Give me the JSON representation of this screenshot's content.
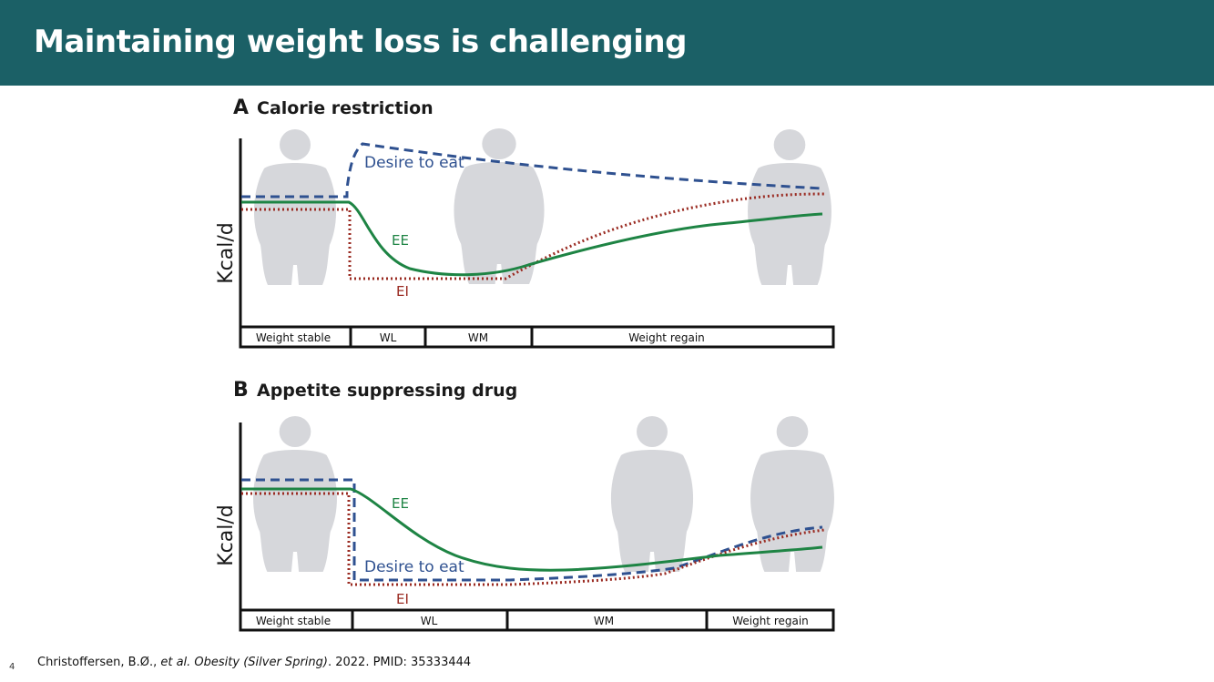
{
  "slide": {
    "title": "Maintaining weight loss is challenging",
    "page_number": "4"
  },
  "panel_a": {
    "letter": "A",
    "title": "Calorie restriction",
    "ylabel": "Kcal/d",
    "label_desire": "Desire to eat",
    "label_ee": "EE",
    "label_ei": "EI",
    "phases": [
      "Weight stable",
      "WL",
      "WM",
      "Weight regain"
    ]
  },
  "panel_b": {
    "letter": "B",
    "title": "Appetite suppressing drug",
    "ylabel": "Kcal/d",
    "label_desire": "Desire to eat",
    "label_ee": "EE",
    "label_ei": "EI",
    "phases": [
      "Weight stable",
      "WL",
      "WM",
      "Weight regain"
    ]
  },
  "citation": {
    "authors": "Christoffersen, B.Ø., ",
    "etal": "et al. Obesity (Silver Spring)",
    "rest": ". 2022. PMID: 35333444"
  },
  "colors": {
    "header": "#1b6066",
    "desire": "#2f5190",
    "ee": "#1e8444",
    "ei": "#9a2b22",
    "silhouette": "#d6d7db"
  }
}
